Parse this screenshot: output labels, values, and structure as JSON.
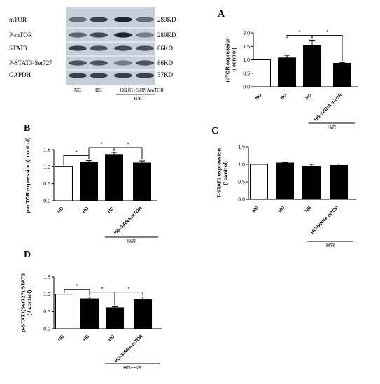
{
  "blot": {
    "rows": [
      {
        "label": "mTOR",
        "kd": "289KD"
      },
      {
        "label": "P-mTOR",
        "kd": "289KD"
      },
      {
        "label": "STAT3",
        "kd": "86KD"
      },
      {
        "label": "P-STAT3-Ser727",
        "kd": "86KD"
      },
      {
        "label": "GAPDH",
        "kd": "37KD"
      }
    ],
    "lanes": [
      "NG",
      "HG",
      "HG",
      "HG+SiRNAmTOR"
    ],
    "group_label": "H/R"
  },
  "chart_data": [
    {
      "panel": "A",
      "type": "bar",
      "categories": [
        "NG",
        "HG",
        "HG",
        "HG-SiRNA mTOR"
      ],
      "values": [
        1.0,
        1.07,
        1.53,
        0.87
      ],
      "errors": [
        0.0,
        0.1,
        0.2,
        0.03
      ],
      "fills": [
        "white",
        "black",
        "black",
        "black"
      ],
      "ylabel": "mTOR expression (/ control)",
      "ylabel_lines": [
        "mTOR expression",
        "(/ control)"
      ],
      "ylim": [
        0,
        2.0
      ],
      "yticks": [
        0.0,
        0.5,
        1.0,
        1.5,
        2.0
      ],
      "ytick_labels": [
        "0.0",
        "0.5",
        "1.0",
        "1.5",
        "2.0"
      ],
      "group_label": "H/R",
      "sig": [
        {
          "from": 2,
          "to": 1,
          "label": "*"
        },
        {
          "from": 2,
          "to": 3,
          "label": "*"
        }
      ]
    },
    {
      "panel": "B",
      "type": "bar",
      "categories": [
        "NG",
        "HG",
        "HG",
        "HG-SiRNA mTOR"
      ],
      "values": [
        1.0,
        1.13,
        1.36,
        1.11
      ],
      "errors": [
        0.0,
        0.05,
        0.06,
        0.06
      ],
      "fills": [
        "white",
        "black",
        "black",
        "black"
      ],
      "ylabel": "p-mTOR expression (/ control)",
      "ylabel_lines": [
        "p-mTOR expression (/ control)"
      ],
      "ylim": [
        0,
        1.5
      ],
      "yticks": [
        0.0,
        0.5,
        1.0,
        1.5
      ],
      "ytick_labels": [
        "0.0",
        "0.5",
        "1.0",
        "1.5"
      ],
      "group_label": "H/R",
      "sig": [
        {
          "from": 0,
          "to": 1,
          "label": "*"
        },
        {
          "from": 1,
          "to": 2,
          "label": "*"
        },
        {
          "from": 2,
          "to": 3,
          "label": "*"
        }
      ]
    },
    {
      "panel": "C",
      "type": "bar",
      "categories": [
        "NG",
        "HG",
        "HG",
        "HG-SiRNA mTOR"
      ],
      "values": [
        1.0,
        1.04,
        0.95,
        0.97
      ],
      "errors": [
        0.0,
        0.02,
        0.05,
        0.04
      ],
      "fills": [
        "white",
        "black",
        "black",
        "black"
      ],
      "ylabel": "T-STAT3 expression (/ control)",
      "ylabel_lines": [
        "T-STAT3 expression",
        "(/ control)"
      ],
      "ylim": [
        0,
        1.5
      ],
      "yticks": [
        0.0,
        0.5,
        1.0,
        1.5
      ],
      "ytick_labels": [
        "0.0",
        "0.5",
        "1.0",
        "1.5"
      ],
      "group_label": "H/R",
      "sig": []
    },
    {
      "panel": "D",
      "type": "bar",
      "categories": [
        "NG",
        "HG",
        "HG",
        "HG-SiRNA mTOR"
      ],
      "values": [
        1.0,
        0.87,
        0.61,
        0.84
      ],
      "errors": [
        0.0,
        0.05,
        0.03,
        0.08
      ],
      "fills": [
        "white",
        "black",
        "black",
        "black"
      ],
      "ylabel": "p-STAT3(Ser727)/STAT3 (/ control)",
      "ylabel_lines": [
        "p-STAT3(Ser727)/STAT3",
        "( / control)"
      ],
      "ylim": [
        0,
        1.5
      ],
      "yticks": [
        0.0,
        0.5,
        1.0,
        1.5
      ],
      "ytick_labels": [
        "0.0",
        "0.5",
        "1.0",
        "1.5"
      ],
      "group_label": "HG+H/R",
      "sig": [
        {
          "from": 0,
          "to": 1,
          "label": "*"
        },
        {
          "from": 1,
          "to": 2,
          "label": "*"
        },
        {
          "from": 2,
          "to": 3,
          "label": "*"
        }
      ]
    }
  ]
}
